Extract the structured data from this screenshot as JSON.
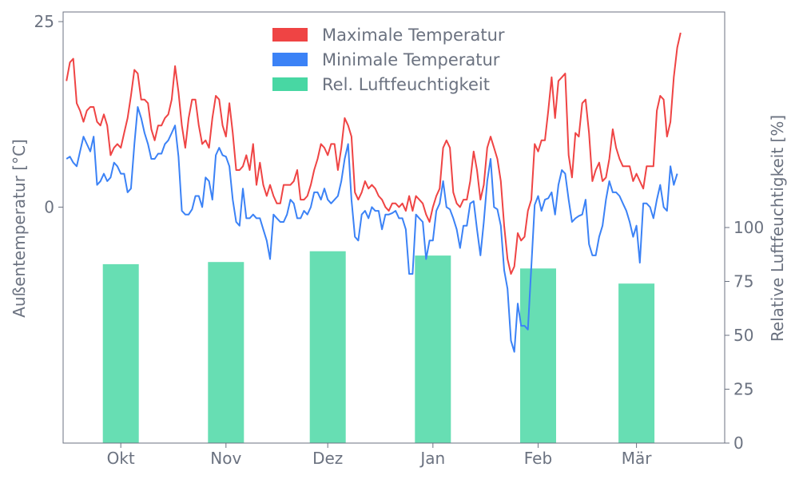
{
  "chart_data": {
    "type": "line+bar",
    "title": "",
    "legend": {
      "placement": "top-center",
      "entries": [
        {
          "label": "Maximale Temperatur",
          "color": "#ef4444"
        },
        {
          "label": "Minimale Temperatur",
          "color": "#3b82f6"
        },
        {
          "label": "Rel. Luftfeuchtigkeit",
          "color": "#34d399"
        }
      ]
    },
    "x_axis": {
      "type": "date",
      "range": [
        "2023-09-14",
        "2024-03-27"
      ],
      "ticks": [
        {
          "date": "2023-10-01",
          "label": "Okt"
        },
        {
          "date": "2023-11-01",
          "label": "Nov"
        },
        {
          "date": "2023-12-01",
          "label": "Dez"
        },
        {
          "date": "2024-01-01",
          "label": "Jan"
        },
        {
          "date": "2024-02-01",
          "label": "Feb"
        },
        {
          "date": "2024-03-01",
          "label": "Mär"
        }
      ]
    },
    "y_left": {
      "label": "Außentemperatur [°C]",
      "range": [
        -31.8,
        26.3
      ],
      "ticks": [
        0,
        25
      ]
    },
    "y_right": {
      "label": "Relative Luftfeuchtigkeit [%]",
      "range": [
        0,
        200
      ],
      "ticks": [
        0,
        25,
        50,
        75,
        100
      ]
    },
    "grid": false,
    "series": [
      {
        "name": "Maximale Temperatur",
        "axis": "left",
        "type": "line",
        "color": "#ef4444",
        "start_date": "2023-09-15",
        "values": [
          17,
          19.5,
          20,
          14,
          13,
          11.5,
          13,
          13.5,
          13.5,
          11.5,
          11,
          12.5,
          11,
          7,
          8,
          8.5,
          8,
          10,
          12,
          15,
          18.5,
          18,
          14.5,
          14.5,
          14,
          10.5,
          9,
          11,
          11,
          12,
          12.5,
          14.5,
          19,
          15.5,
          11,
          8,
          12,
          14.5,
          14.5,
          11,
          8.5,
          9,
          8,
          12,
          15,
          14.5,
          11,
          9.5,
          14,
          10,
          5,
          5,
          5.5,
          7,
          5,
          8.5,
          3,
          6,
          3,
          1.5,
          3,
          1.5,
          0.5,
          0.5,
          3,
          3,
          3,
          3.5,
          5,
          1,
          1,
          1.5,
          3,
          5,
          6.5,
          8.5,
          8,
          7,
          8.5,
          8.5,
          5,
          8,
          12,
          11,
          9.5,
          2,
          1,
          2,
          3.5,
          2.5,
          3,
          2.5,
          1.5,
          1,
          0,
          -0.5,
          0.5,
          0.5,
          0,
          0.5,
          -0.5,
          1.5,
          -0.5,
          1.5,
          1,
          0.5,
          -1,
          -2,
          0,
          1.5,
          2.5,
          8,
          9,
          8,
          2,
          0.5,
          0,
          1,
          1,
          3.5,
          7.5,
          5,
          1,
          3,
          8,
          9.5,
          8,
          6.5,
          3.5,
          -2.5,
          -7,
          -9,
          -8,
          -3.5,
          -4.5,
          -4,
          -0.5,
          1,
          8.5,
          7.5,
          9,
          9,
          13,
          17.5,
          12,
          17,
          17.5,
          18,
          7,
          4,
          10,
          9.5,
          14,
          14.5,
          10,
          3.5,
          5,
          6,
          3.5,
          4,
          6.5,
          10.5,
          8,
          6.5,
          5.5,
          5.5,
          5.5,
          3.5,
          4.5,
          3.5,
          2.5,
          5.5,
          5.5,
          5.5,
          13,
          15,
          14.5,
          9.5,
          11.5,
          17.5,
          21.5,
          23.5
        ]
      },
      {
        "name": "Minimale Temperatur",
        "axis": "left",
        "type": "line",
        "color": "#3b82f6",
        "start_date": "2023-09-15",
        "values": [
          6.5,
          6.8,
          6,
          5.5,
          7.5,
          9.5,
          8.5,
          7.5,
          9.5,
          3,
          3.5,
          4.5,
          3.5,
          4,
          6,
          5.5,
          4.5,
          4.5,
          2,
          2.5,
          8.5,
          13.5,
          12,
          10,
          8.5,
          6.5,
          6.5,
          7.2,
          7.2,
          8.5,
          9,
          10,
          11,
          6.8,
          -0.5,
          -1,
          -1,
          -0.3,
          1.5,
          1.5,
          0,
          4,
          3.5,
          1,
          7,
          8,
          7,
          6.8,
          5.5,
          1,
          -2,
          -2.5,
          2.5,
          -1.5,
          -1.5,
          -1,
          -1.5,
          -1.5,
          -3,
          -4.5,
          -7,
          -1,
          -1.5,
          -2,
          -2,
          -1,
          1,
          0.5,
          -1.5,
          -1.5,
          -0.5,
          -1,
          0,
          2,
          2,
          1,
          2.5,
          1,
          0.5,
          1,
          1.5,
          3.5,
          6.5,
          8.5,
          1,
          -4,
          -4.5,
          -1,
          -0.5,
          -1.5,
          0,
          -0.5,
          -0.5,
          -3,
          -1,
          -1,
          -0.8,
          -0.5,
          -1.5,
          -1.5,
          -3,
          -9,
          -9,
          -1,
          -1.5,
          -2,
          -7,
          -4.5,
          -4.5,
          -0.5,
          0.5,
          3.5,
          0,
          -0.3,
          -1.5,
          -3,
          -5.5,
          -2.5,
          -2.5,
          0.5,
          0.8,
          -3,
          -6.5,
          -2,
          3.5,
          6.5,
          0,
          -0.3,
          -2.5,
          -8.5,
          -11,
          -18,
          -19.5,
          -13,
          -16,
          -16,
          -16.5,
          -8,
          0.3,
          1.5,
          -0.5,
          1,
          1.2,
          2,
          -1,
          3,
          5,
          4.5,
          1,
          -2,
          -1.5,
          -1.2,
          -1,
          1,
          -5,
          -6.5,
          -6.5,
          -4,
          -2.5,
          1,
          3.5,
          2,
          2,
          1.5,
          0.5,
          -0.5,
          -2,
          -4,
          -2.5,
          -7.5,
          0.5,
          0.5,
          0,
          -1.5,
          1,
          3,
          0,
          -0.5,
          5.5,
          3,
          4.5
        ]
      },
      {
        "name": "Rel. Luftfeuchtigkeit",
        "axis": "right",
        "type": "bar",
        "color": "#34d399",
        "categories": [
          "Okt",
          "Nov",
          "Dez",
          "Jan",
          "Feb",
          "Mär"
        ],
        "values": [
          83,
          84,
          89,
          87,
          81,
          74
        ]
      }
    ]
  }
}
